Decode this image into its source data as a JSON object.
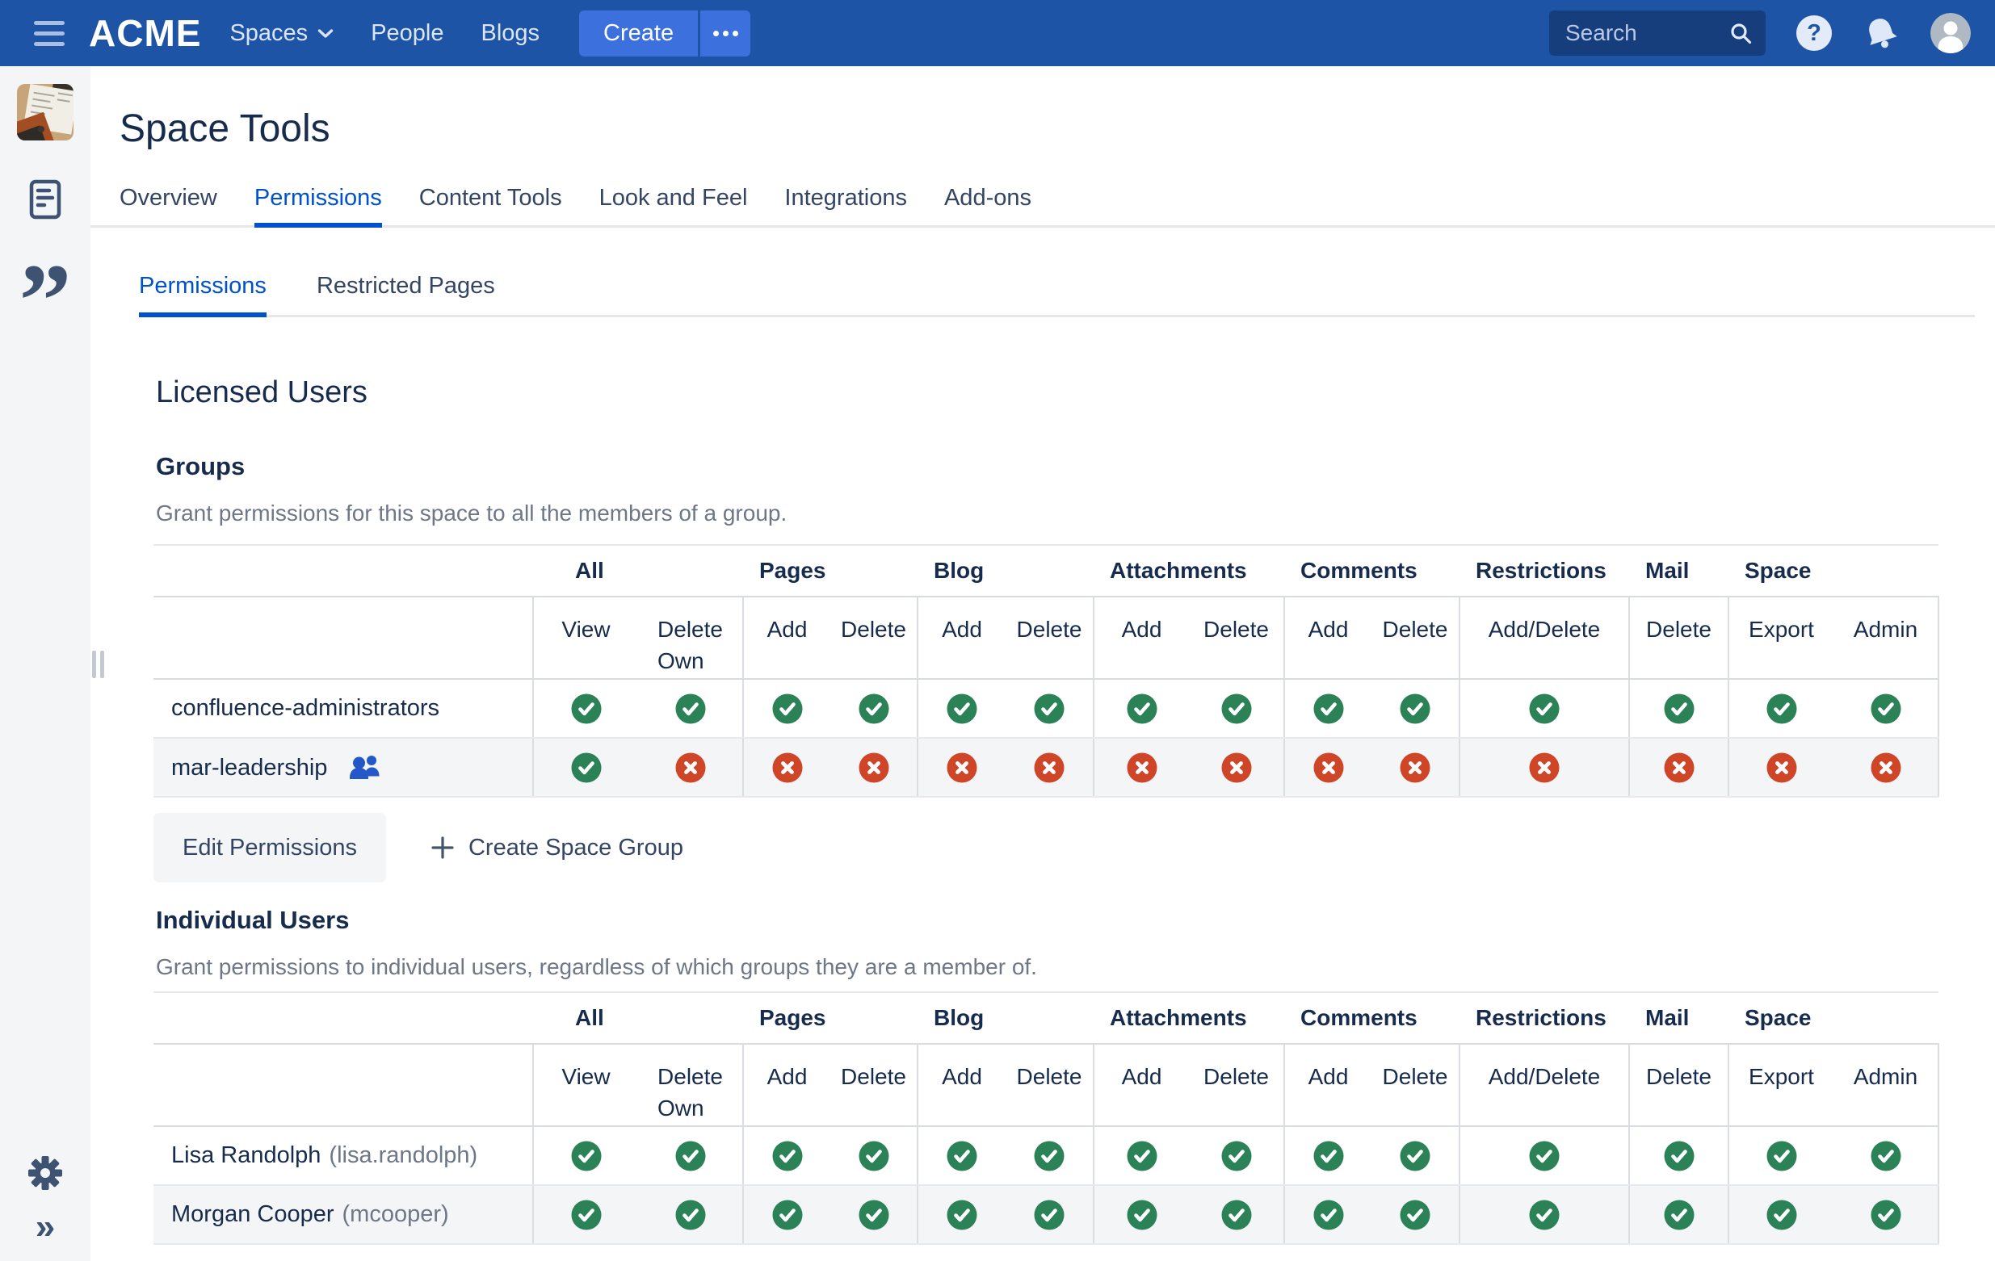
{
  "topnav": {
    "product": "ACME",
    "items": [
      "Spaces",
      "People",
      "Blogs"
    ],
    "create_label": "Create",
    "search_placeholder": "Search"
  },
  "page": {
    "title": "Space Tools",
    "tabs": [
      "Overview",
      "Permissions",
      "Content Tools",
      "Look and Feel",
      "Integrations",
      "Add-ons"
    ],
    "active_tab": "Permissions",
    "subtabs": [
      "Permissions",
      "Restricted Pages"
    ],
    "active_subtab": "Permissions"
  },
  "sections": {
    "licensed_users": {
      "heading": "Licensed Users",
      "groups": {
        "heading": "Groups",
        "description": "Grant permissions for this space to all the members of a group.",
        "buttons": {
          "edit": "Edit Permissions",
          "create": "Create Space Group"
        }
      },
      "individual": {
        "heading": "Individual Users",
        "description": "Grant permissions to individual users, regardless of which groups they are a member of."
      }
    }
  },
  "table": {
    "column_groups": [
      {
        "label": "All",
        "cols": [
          {
            "lines": [
              "View"
            ]
          },
          {
            "lines": [
              "Delete",
              "Own"
            ]
          }
        ]
      },
      {
        "label": "Pages",
        "cols": [
          {
            "lines": [
              "Add"
            ]
          },
          {
            "lines": [
              "Delete"
            ]
          }
        ]
      },
      {
        "label": "Blog",
        "cols": [
          {
            "lines": [
              "Add"
            ]
          },
          {
            "lines": [
              "Delete"
            ]
          }
        ]
      },
      {
        "label": "Attachments",
        "cols": [
          {
            "lines": [
              "Add"
            ]
          },
          {
            "lines": [
              "Delete"
            ]
          }
        ]
      },
      {
        "label": "Comments",
        "cols": [
          {
            "lines": [
              "Add"
            ]
          },
          {
            "lines": [
              "Delete"
            ]
          }
        ]
      },
      {
        "label": "Restrictions",
        "cols": [
          {
            "lines": [
              "Add/Delete"
            ]
          }
        ]
      },
      {
        "label": "Mail",
        "cols": [
          {
            "lines": [
              "Delete"
            ]
          }
        ]
      },
      {
        "label": "Space",
        "cols": [
          {
            "lines": [
              "Export"
            ]
          },
          {
            "lines": [
              "Admin"
            ]
          }
        ]
      }
    ],
    "groups_rows": [
      {
        "name": "confluence-administrators",
        "has_group_icon": false,
        "perms": [
          1,
          1,
          1,
          1,
          1,
          1,
          1,
          1,
          1,
          1,
          1,
          1,
          1,
          1
        ]
      },
      {
        "name": "mar-leadership",
        "has_group_icon": true,
        "perms": [
          1,
          0,
          0,
          0,
          0,
          0,
          0,
          0,
          0,
          0,
          0,
          0,
          0,
          0
        ]
      }
    ],
    "user_rows": [
      {
        "name": "Lisa Randolph",
        "username": "(lisa.randolph)",
        "perms": [
          1,
          1,
          1,
          1,
          1,
          1,
          1,
          1,
          1,
          1,
          1,
          1,
          1,
          1
        ]
      },
      {
        "name": "Morgan Cooper",
        "username": "(mcooper)",
        "perms": [
          1,
          1,
          1,
          1,
          1,
          1,
          1,
          1,
          1,
          1,
          1,
          1,
          1,
          1
        ]
      }
    ]
  },
  "icons": {
    "hamburger_menu": "three-bars",
    "chevron_down": "v",
    "ellipsis": "three-dots",
    "search": "magnifier",
    "help_glyph": "?",
    "notifications": "bell",
    "user": "person-silhouette",
    "space_logo": "notebook-photo-thumbnail",
    "pages_doc": "document-outline",
    "quote": "”",
    "settings": "gear",
    "expand": "»",
    "group_members": "two-person-figure",
    "allowed": "check-circle",
    "denied": "cross-circle",
    "plus": "+"
  },
  "colors": {
    "nav_bar": "#1E54A6",
    "nav_button": "#3C70DC",
    "search_field": "#173E7C",
    "accent": "#0052CC",
    "text": "#172B4D",
    "muted": "#6E7787",
    "allowed_green": "#2B8256",
    "denied_red": "#CE4528",
    "row_alt": "#F4F5F7",
    "sidebar_bg": "#F4F5F7",
    "group_icon_blue": "#2458C8"
  }
}
